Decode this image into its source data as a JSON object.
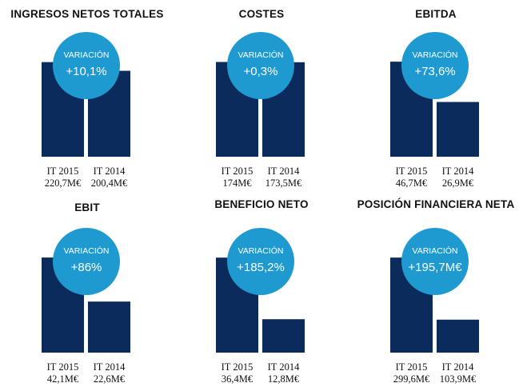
{
  "badge_label": "VARIACIÓN",
  "colors": {
    "bar": "#0b2b5c",
    "badge": "#1f9ad1",
    "text": "#111111"
  },
  "chart_data": [
    {
      "type": "bar",
      "title": "INGRESOS NETOS TOTALES",
      "categories": [
        "IT 2015",
        "IT 2014"
      ],
      "values": [
        220.7,
        200.4
      ],
      "value_labels": [
        "220,7M€",
        "200,4M€"
      ],
      "variation": "+10,1%",
      "ylim": [
        0,
        235
      ]
    },
    {
      "type": "bar",
      "title": "COSTES",
      "categories": [
        "IT 2015",
        "IT 2014"
      ],
      "values": [
        174,
        173.5
      ],
      "value_labels": [
        "174M€",
        "173,5M€"
      ],
      "variation": "+0,3%",
      "ylim": [
        0,
        185
      ]
    },
    {
      "type": "bar",
      "title": "EBITDA",
      "categories": [
        "IT 2015",
        "IT 2014"
      ],
      "values": [
        46.7,
        26.9
      ],
      "value_labels": [
        "46,7M€",
        "26,9M€"
      ],
      "variation": "+73,6%",
      "ylim": [
        0,
        49.5
      ]
    },
    {
      "type": "bar",
      "title": "EBIT",
      "categories": [
        "IT 2015",
        "IT 2014"
      ],
      "values": [
        42.1,
        22.6
      ],
      "value_labels": [
        "42,1M€",
        "22,6M€"
      ],
      "variation": "+86%",
      "ylim": [
        0,
        44.6
      ]
    },
    {
      "type": "bar",
      "title": "BENEFICIO NETO",
      "categories": [
        "IT 2015",
        "IT 2014"
      ],
      "values": [
        36.4,
        12.8
      ],
      "value_labels": [
        "36,4M€",
        "12,8M€"
      ],
      "variation": "+185,2%",
      "ylim": [
        0,
        38.6
      ]
    },
    {
      "type": "bar",
      "title": "POSICIÓN FINANCIERA NETA",
      "categories": [
        "IT 2015",
        "IT 2014"
      ],
      "values": [
        299.6,
        103.9
      ],
      "value_labels": [
        "299,6M€",
        "103,9M€"
      ],
      "variation": "+195,7M€",
      "ylim": [
        0,
        317.6
      ]
    }
  ]
}
